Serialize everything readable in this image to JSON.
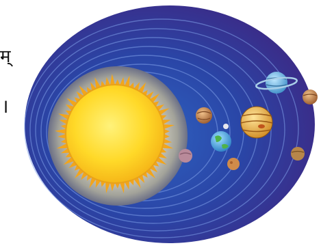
{
  "edge_text": {
    "line1": "म्",
    "line2": "।"
  },
  "colors": {
    "page_background": "#ffffff",
    "space_outer": "#3a2f8f",
    "space_inner": "#2b4fb0",
    "orbit_lines": "#6f8fe0",
    "sun_halo": "#a8a8a0",
    "sun_core": "#ffe23a",
    "sun_flares": "#f2a51c"
  },
  "icons": {
    "sun": "sun-icon",
    "planets": [
      "mercury-icon",
      "venus-icon",
      "earth-icon",
      "moon-icon",
      "mars-icon",
      "jupiter-icon",
      "saturn-icon",
      "uranus-icon",
      "neptune-icon"
    ]
  }
}
